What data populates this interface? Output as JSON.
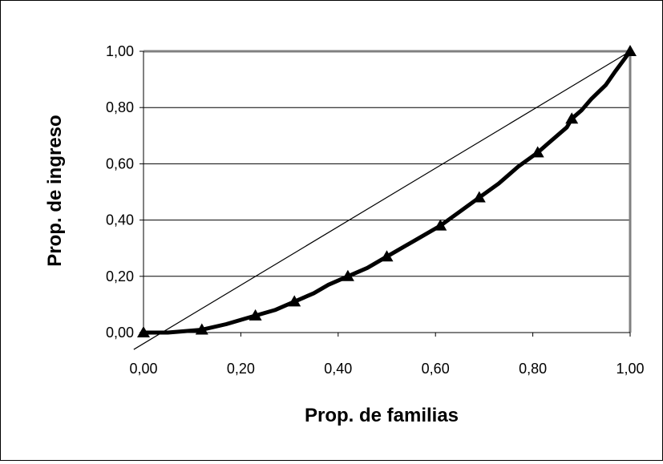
{
  "chart_data": {
    "type": "line",
    "title": "",
    "xlabel": "Prop. de familias",
    "ylabel": "Prop. de ingreso",
    "xlim": [
      0,
      1
    ],
    "ylim": [
      0,
      1
    ],
    "x_ticks": [
      "0,00",
      "0,20",
      "0,40",
      "0,60",
      "0,80",
      "1,00"
    ],
    "y_ticks": [
      "0,00",
      "0,20",
      "0,40",
      "0,60",
      "0,80",
      "1,00"
    ],
    "grid": "horizontal",
    "legend": "none",
    "series": [
      {
        "style": "curve",
        "color": "#000000",
        "x": [
          0.0,
          0.05,
          0.12,
          0.17,
          0.21,
          0.23,
          0.27,
          0.31,
          0.35,
          0.38,
          0.42,
          0.46,
          0.5,
          0.53,
          0.57,
          0.61,
          0.65,
          0.69,
          0.73,
          0.77,
          0.81,
          0.83,
          0.87,
          0.88,
          0.9,
          0.92,
          0.95,
          0.97,
          1.0
        ],
        "y": [
          0.0,
          0.0,
          0.01,
          0.03,
          0.05,
          0.06,
          0.08,
          0.11,
          0.14,
          0.17,
          0.2,
          0.23,
          0.27,
          0.3,
          0.34,
          0.38,
          0.43,
          0.48,
          0.53,
          0.59,
          0.64,
          0.67,
          0.73,
          0.76,
          0.79,
          0.83,
          0.88,
          0.93,
          1.0
        ]
      },
      {
        "style": "markers",
        "marker": "triangle",
        "color": "#000000",
        "x": [
          0.0,
          0.12,
          0.23,
          0.31,
          0.42,
          0.5,
          0.61,
          0.69,
          0.81,
          0.88,
          1.0
        ],
        "y": [
          0.0,
          0.01,
          0.06,
          0.11,
          0.2,
          0.27,
          0.38,
          0.48,
          0.64,
          0.76,
          1.0
        ]
      },
      {
        "style": "line",
        "color": "#000000",
        "x": [
          -0.02,
          1.0
        ],
        "y": [
          -0.06,
          1.0
        ]
      }
    ]
  }
}
